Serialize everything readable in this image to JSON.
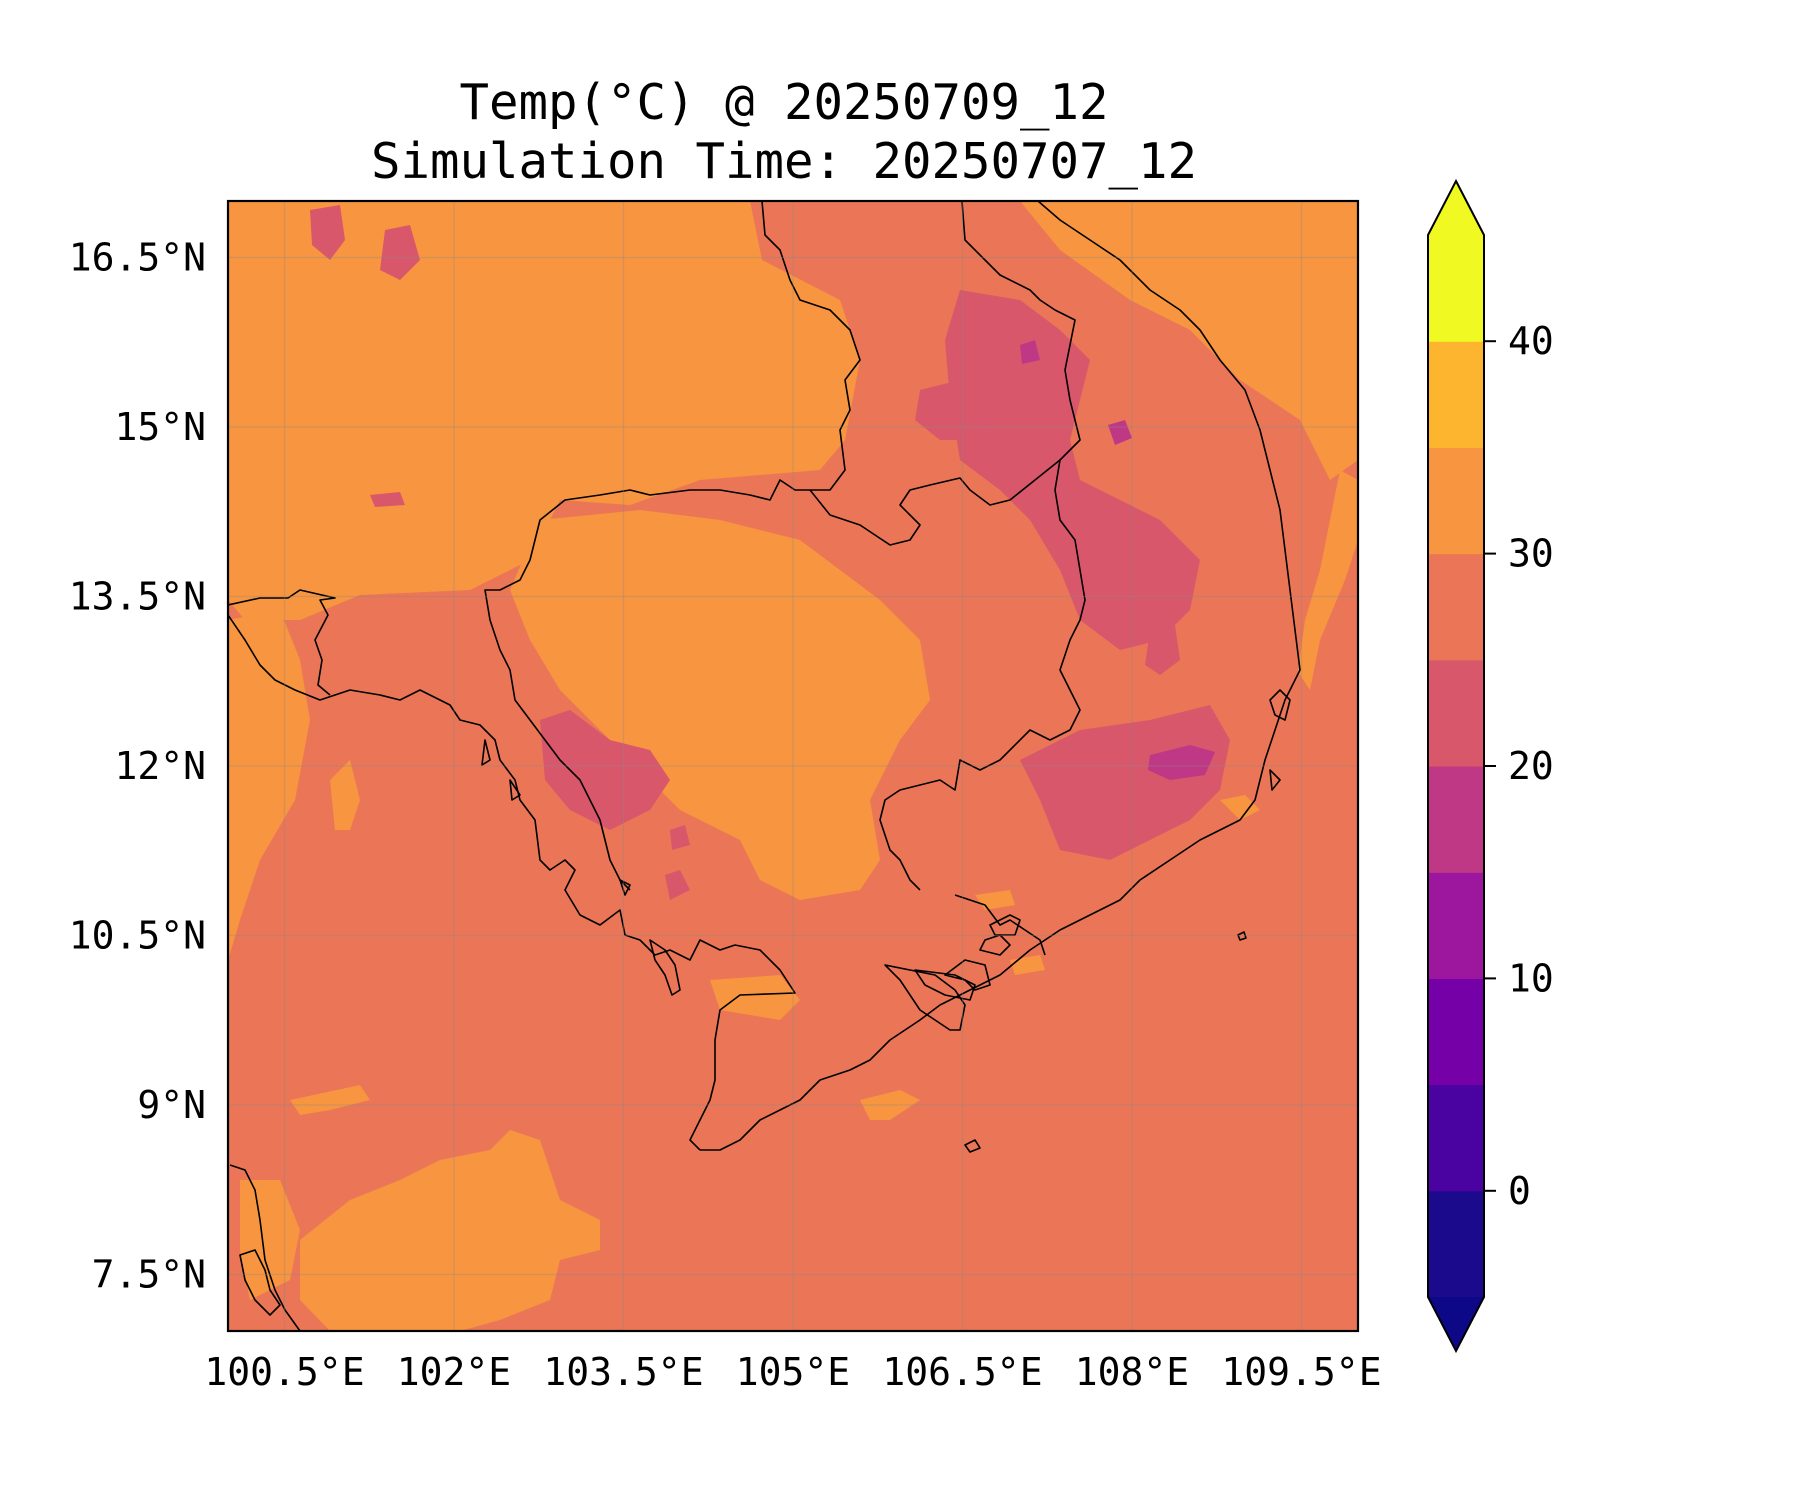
{
  "title": {
    "line1": "Temp(°C) @ 20250709_12",
    "line2": "Simulation Time: 20250707_12"
  },
  "map": {
    "region": "Cambodia and surrounding Southeast Asia",
    "projection": "PlateCarree",
    "lon_range": [
      100.0,
      110.0
    ],
    "lat_range": [
      7.0,
      17.0
    ],
    "lon_ticks": [
      {
        "value": 100.5,
        "label": "100.5°E"
      },
      {
        "value": 102.0,
        "label": "102°E"
      },
      {
        "value": 103.5,
        "label": "103.5°E"
      },
      {
        "value": 105.0,
        "label": "105°E"
      },
      {
        "value": 106.5,
        "label": "106.5°E"
      },
      {
        "value": 108.0,
        "label": "108°E"
      },
      {
        "value": 109.5,
        "label": "109.5°E"
      }
    ],
    "lat_ticks": [
      {
        "value": 16.5,
        "label": "16.5°N"
      },
      {
        "value": 15.0,
        "label": "15°N"
      },
      {
        "value": 13.5,
        "label": "13.5°N"
      },
      {
        "value": 12.0,
        "label": "12°N"
      },
      {
        "value": 10.5,
        "label": "10.5°N"
      },
      {
        "value": 9.0,
        "label": "9°N"
      },
      {
        "value": 7.5,
        "label": "7.5°N"
      }
    ],
    "gridlines": true,
    "background_color": "#ea7657"
  },
  "colorbar": {
    "colormap": "plasma",
    "extend": "both",
    "levels": [
      -5,
      0,
      5,
      10,
      15,
      20,
      25,
      30,
      35,
      40,
      45
    ],
    "colors": [
      "#1c0a8c",
      "#4a03a1",
      "#7500a8",
      "#9c179e",
      "#be3885",
      "#d8576b",
      "#ea7657",
      "#f89540",
      "#fdb42f",
      "#f0f921"
    ],
    "under_color": "#0d0887",
    "over_color": "#f0f921",
    "ticks": [
      {
        "value": 0,
        "label": "0"
      },
      {
        "value": 10,
        "label": "10"
      },
      {
        "value": 20,
        "label": "20"
      },
      {
        "value": 30,
        "label": "30"
      },
      {
        "value": 40,
        "label": "40"
      }
    ]
  }
}
